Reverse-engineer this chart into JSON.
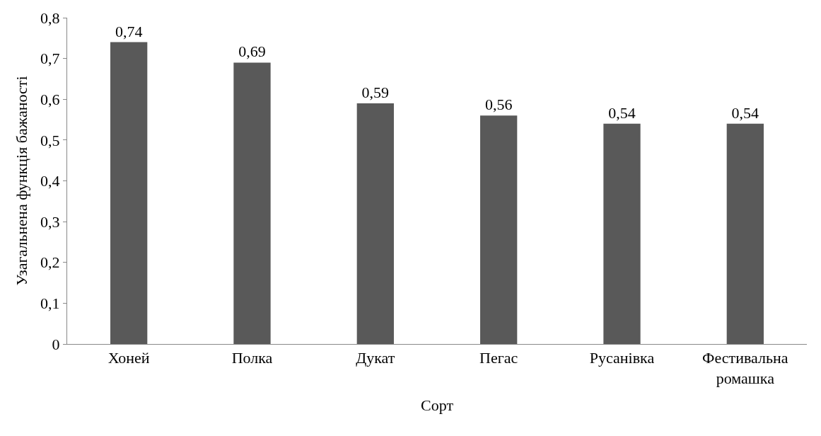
{
  "chart_data": {
    "type": "bar",
    "xlabel": "Сорт",
    "ylabel": "Узагальнена функція бажаності",
    "categories": [
      "Хоней",
      "Полка",
      "Дукат",
      "Пегас",
      "Русанівка",
      "Фестивальна ромашка"
    ],
    "values": [
      0.74,
      0.69,
      0.59,
      0.56,
      0.54,
      0.54
    ],
    "value_labels": [
      "0,74",
      "0,69",
      "0,59",
      "0,56",
      "0,54",
      "0,54"
    ],
    "color": "#595959",
    "ylim": [
      0,
      0.8
    ],
    "yticks": [
      0,
      {
        "value": 0.1,
        "label": "0,1"
      },
      {
        "value": 0.2,
        "label": "0,2"
      },
      {
        "value": 0.3,
        "label": "0,3"
      },
      {
        "value": 0.4,
        "label": "0,4"
      },
      {
        "value": 0.5,
        "label": "0,5"
      },
      {
        "value": 0.6,
        "label": "0,6"
      },
      {
        "value": 0.7,
        "label": "0,7"
      },
      {
        "value": 0.8,
        "label": "0,8"
      }
    ],
    "grid": false
  }
}
